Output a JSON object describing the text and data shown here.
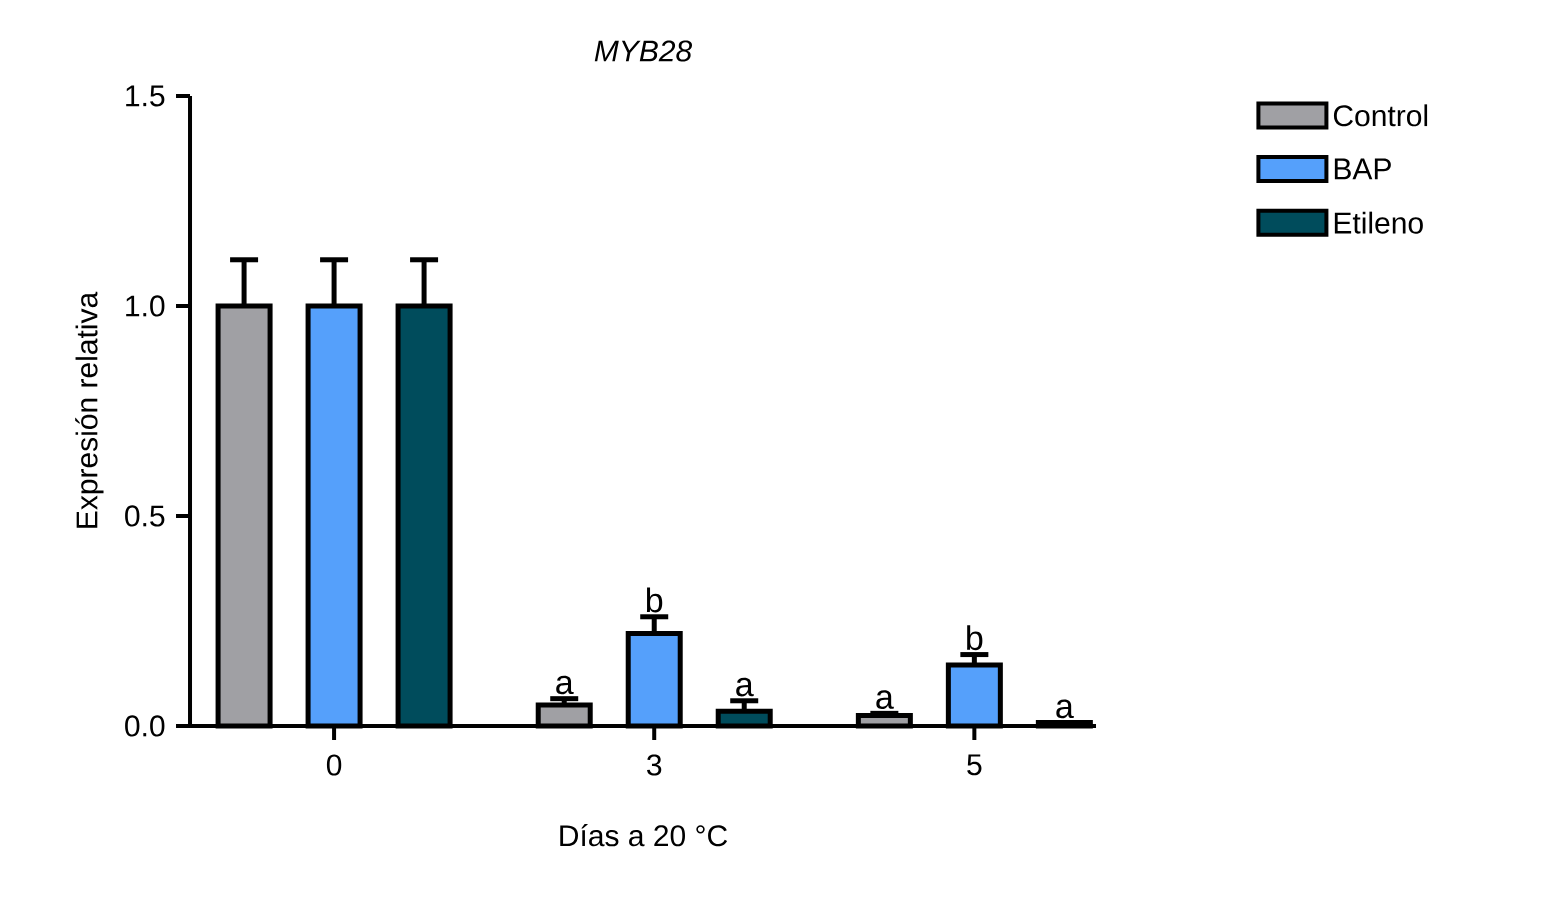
{
  "chart_data": {
    "type": "bar",
    "title": "MYB28",
    "xlabel": "Días a 20 °C",
    "ylabel": "Expresión relativa",
    "categories": [
      "0",
      "3",
      "5"
    ],
    "series": [
      {
        "name": "Control",
        "color": "#a0a0a4",
        "values": [
          1.0,
          0.05,
          0.025
        ],
        "errors": [
          0.11,
          0.015,
          0.005
        ],
        "value_labels": [
          null,
          "a",
          "a"
        ]
      },
      {
        "name": "BAP",
        "color": "#55a0fb",
        "values": [
          1.0,
          0.22,
          0.145
        ],
        "errors": [
          0.11,
          0.04,
          0.025
        ],
        "value_labels": [
          null,
          "b",
          "b"
        ]
      },
      {
        "name": "Etileno",
        "color": "#004c5c",
        "values": [
          1.0,
          0.035,
          0.008
        ],
        "errors": [
          0.11,
          0.025,
          null
        ],
        "value_labels": [
          null,
          "a",
          "a"
        ]
      }
    ],
    "ylim": [
      0,
      1.5
    ],
    "yticks": [
      {
        "value": 0,
        "label": "0.0"
      },
      0.5,
      {
        "value": 1,
        "label": "1.0"
      },
      1.5
    ],
    "legend": "right",
    "grid": false
  }
}
